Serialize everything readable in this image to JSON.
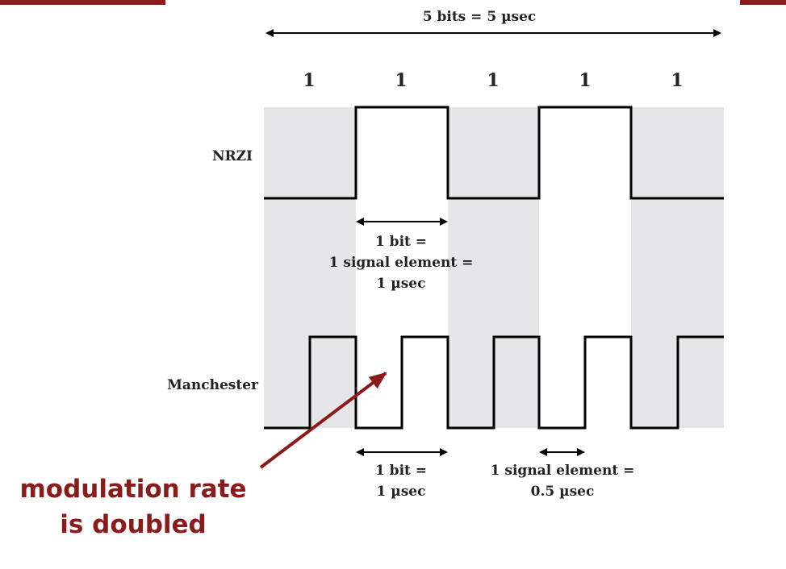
{
  "diagram": {
    "total_label": "5 bits = 5 µsec",
    "bits": [
      "1",
      "1",
      "1",
      "1",
      "1"
    ],
    "nrzi_label": "NRZI",
    "manchester_label": "Manchester",
    "nrzi_annotation": [
      "1 bit =",
      "1 signal element =",
      "1 µsec"
    ],
    "manchester_bit_annotation": [
      "1 bit =",
      "1 µsec"
    ],
    "manchester_element_annotation": [
      "1 signal element =",
      "0.5 µsec"
    ],
    "caption_lines": [
      "modulation rate",
      "is doubled"
    ],
    "colors": {
      "accent": "#8b1a1a",
      "band": "#e6e6e8",
      "signal": "#000000"
    }
  }
}
